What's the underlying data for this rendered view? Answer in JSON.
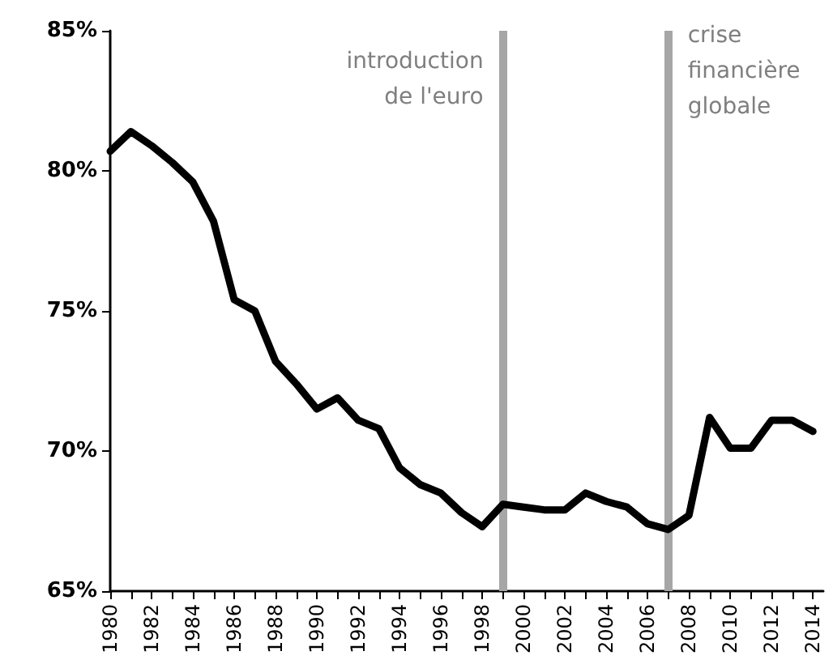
{
  "chart_data": {
    "type": "line",
    "x": [
      1980,
      1981,
      1982,
      1983,
      1984,
      1985,
      1986,
      1987,
      1988,
      1989,
      1990,
      1991,
      1992,
      1993,
      1994,
      1995,
      1996,
      1997,
      1998,
      1999,
      2000,
      2001,
      2002,
      2003,
      2004,
      2005,
      2006,
      2007,
      2008,
      2009,
      2010,
      2011,
      2012,
      2013,
      2014
    ],
    "series": [
      {
        "color": "#000000",
        "values": [
          80.7,
          81.4,
          80.9,
          80.3,
          79.6,
          78.2,
          75.4,
          75.0,
          73.2,
          72.4,
          71.5,
          71.9,
          71.1,
          70.8,
          69.4,
          68.8,
          68.5,
          67.8,
          67.3,
          68.1,
          68.0,
          67.9,
          67.9,
          68.5,
          68.2,
          68.0,
          67.4,
          67.2,
          67.7,
          71.2,
          70.1,
          70.1,
          71.1,
          71.1,
          70.7
        ]
      }
    ],
    "xlim": [
      1980,
      2014.5
    ],
    "xticks": [
      1980,
      {
        "value": 1981,
        "label": null
      },
      1982,
      {
        "value": 1983,
        "label": null
      },
      1984,
      {
        "value": 1985,
        "label": null
      },
      1986,
      {
        "value": 1987,
        "label": null
      },
      1988,
      {
        "value": 1989,
        "label": null
      },
      1990,
      {
        "value": 1991,
        "label": null
      },
      1992,
      {
        "value": 1993,
        "label": null
      },
      1994,
      {
        "value": 1995,
        "label": null
      },
      1996,
      {
        "value": 1997,
        "label": null
      },
      1998,
      {
        "value": 1999,
        "label": null
      },
      2000,
      {
        "value": 2001,
        "label": null
      },
      2002,
      {
        "value": 2003,
        "label": null
      },
      2004,
      {
        "value": 2005,
        "label": null
      },
      2006,
      {
        "value": 2007,
        "label": null
      },
      2008,
      {
        "value": 2009,
        "label": null
      },
      2010,
      {
        "value": 2011,
        "label": null
      },
      2012,
      {
        "value": 2013,
        "label": null
      },
      2014
    ],
    "ylim": [
      65,
      85
    ],
    "yticks": [
      {
        "value": 65,
        "label": "65%"
      },
      {
        "value": 70,
        "label": "70%"
      },
      {
        "value": 75,
        "label": "75%"
      },
      {
        "value": 80,
        "label": "80%"
      },
      {
        "value": 85,
        "label": "85%"
      }
    ],
    "ref_lines": [
      {
        "axis": "x",
        "value": 1999,
        "label": "introduction\nde l'euro",
        "color": "#a6a6a6"
      },
      {
        "axis": "x",
        "value": 2007,
        "label": "crise\nfinancière\nglobale",
        "color": "#a6a6a6"
      }
    ],
    "grid": false,
    "marker": "none",
    "line_style": "solid"
  }
}
